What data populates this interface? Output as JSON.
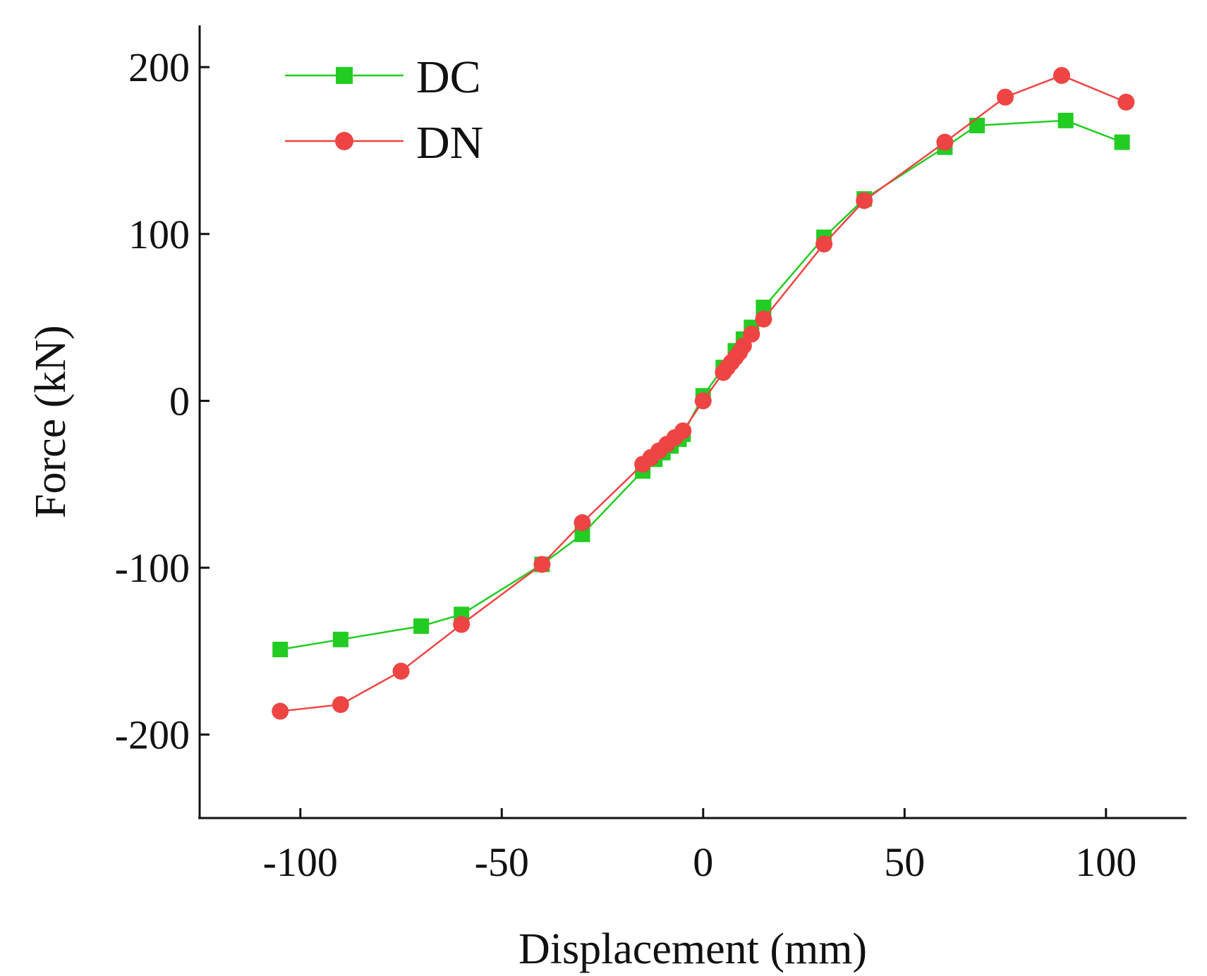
{
  "chart_data": {
    "type": "line",
    "title": "",
    "xlabel": "Displacement (mm)",
    "ylabel": "Force (kN)",
    "xlim": [
      -125,
      120
    ],
    "ylim": [
      -250,
      225
    ],
    "xticks": [
      -100,
      -50,
      0,
      50,
      100
    ],
    "yticks": [
      -200,
      -100,
      0,
      100,
      200
    ],
    "xtick_labels": [
      "-100",
      "-50",
      "0",
      "50",
      "100"
    ],
    "ytick_labels": [
      "-200",
      "-100",
      "0",
      "100",
      "200"
    ],
    "grid": false,
    "legend_position": "top-left",
    "series": [
      {
        "name": "DC",
        "color": "#22cc22",
        "marker": "square",
        "points": [
          [
            -105,
            -149
          ],
          [
            -90,
            -143
          ],
          [
            -70,
            -135
          ],
          [
            -60,
            -128
          ],
          [
            -40,
            -98
          ],
          [
            -30,
            -80
          ],
          [
            -15,
            -42
          ],
          [
            -12,
            -35
          ],
          [
            -10,
            -31
          ],
          [
            -8,
            -27
          ],
          [
            -6,
            -23
          ],
          [
            -5,
            -20
          ],
          [
            0,
            3
          ],
          [
            5,
            20
          ],
          [
            8,
            30
          ],
          [
            10,
            37
          ],
          [
            12,
            44
          ],
          [
            15,
            56
          ],
          [
            30,
            98
          ],
          [
            40,
            121
          ],
          [
            60,
            152
          ],
          [
            68,
            165
          ],
          [
            90,
            168
          ],
          [
            104,
            155
          ]
        ]
      },
      {
        "name": "DN",
        "color": "#ee4444",
        "marker": "circle",
        "points": [
          [
            -105,
            -186
          ],
          [
            -90,
            -182
          ],
          [
            -75,
            -162
          ],
          [
            -60,
            -134
          ],
          [
            -40,
            -98
          ],
          [
            -30,
            -73
          ],
          [
            -15,
            -38
          ],
          [
            -13,
            -34
          ],
          [
            -11,
            -30
          ],
          [
            -9,
            -26
          ],
          [
            -7,
            -22
          ],
          [
            -5,
            -18
          ],
          [
            0,
            0
          ],
          [
            5,
            17
          ],
          [
            6,
            20
          ],
          [
            7,
            23
          ],
          [
            8,
            26
          ],
          [
            9,
            29
          ],
          [
            10,
            33
          ],
          [
            12,
            40
          ],
          [
            15,
            49
          ],
          [
            30,
            94
          ],
          [
            40,
            120
          ],
          [
            60,
            155
          ],
          [
            75,
            182
          ],
          [
            89,
            195
          ],
          [
            105,
            179
          ]
        ]
      }
    ]
  }
}
